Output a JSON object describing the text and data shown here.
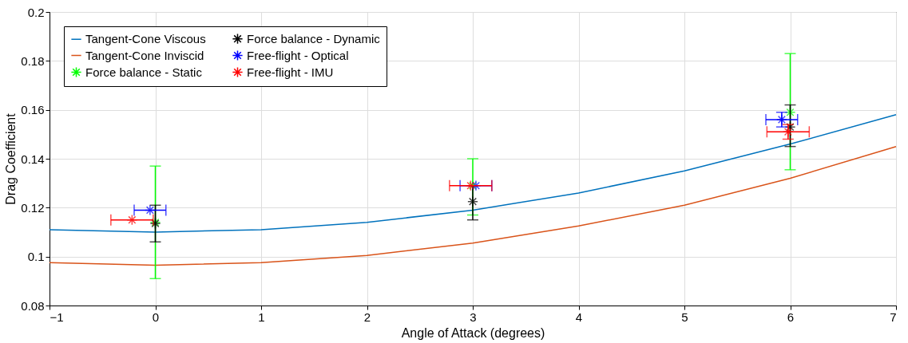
{
  "chart_data": {
    "type": "line",
    "xlabel": "Angle of Attack (degrees)",
    "ylabel": "Drag Coefficient",
    "xlim": [
      -1,
      7
    ],
    "ylim": [
      0.08,
      0.2
    ],
    "xticks": [
      -1,
      0,
      1,
      2,
      3,
      4,
      5,
      6,
      7
    ],
    "yticks": [
      0.08,
      0.1,
      0.12,
      0.14,
      0.16,
      0.18,
      0.2
    ],
    "grid": true,
    "legend": "top left",
    "series": [
      {
        "name": "Tangent-Cone Viscous",
        "color": "#0072bd",
        "x": [
          -1,
          0,
          1,
          2,
          3,
          4,
          5,
          6,
          7
        ],
        "values": [
          0.111,
          0.11,
          0.111,
          0.114,
          0.119,
          0.126,
          0.135,
          0.146,
          0.158
        ]
      },
      {
        "name": "Tangent-Cone Inviscid",
        "color": "#d95319",
        "x": [
          -1,
          0,
          1,
          2,
          3,
          4,
          5,
          6,
          7
        ],
        "values": [
          0.0975,
          0.0965,
          0.0975,
          0.1005,
          0.1055,
          0.1125,
          0.121,
          0.132,
          0.145
        ]
      },
      {
        "name": "Force balance - Static",
        "type": "scatter",
        "marker": "cross",
        "color": "#00ff00",
        "x": [
          0,
          3,
          6
        ],
        "values": [
          0.114,
          0.129,
          0.159
        ],
        "errors": [
          [
            0.091,
            0.137
          ],
          [
            0.117,
            0.14
          ],
          [
            0.1355,
            0.183
          ]
        ]
      },
      {
        "name": "Force balance - Dynamic",
        "type": "scatter",
        "marker": "cross",
        "color": "#000000",
        "x": [
          0,
          3,
          6
        ],
        "values": [
          0.1135,
          0.1225,
          0.153
        ],
        "errors": [
          [
            0.106,
            0.121
          ],
          [
            0.115,
            0.129
          ],
          [
            0.145,
            0.162
          ]
        ]
      },
      {
        "name": "Free-flight - Optical",
        "type": "scatter",
        "marker": "cross",
        "color": "#0000ff",
        "x": [
          -0.05,
          3.03,
          5.92
        ],
        "values": [
          0.119,
          0.129,
          0.156
        ],
        "errors": [
          null,
          null,
          0.003
        ],
        "xerrors": [
          0.15,
          0.15,
          0.15
        ]
      },
      {
        "name": "Free-flight - IMU",
        "type": "scatter",
        "marker": "cross",
        "color": "#ff0000",
        "x": [
          -0.22,
          2.98,
          5.98
        ],
        "values": [
          0.115,
          0.129,
          0.151
        ],
        "errors": [
          null,
          null,
          0.003
        ],
        "xerrors": [
          0.2,
          0.2,
          0.2
        ]
      }
    ]
  }
}
